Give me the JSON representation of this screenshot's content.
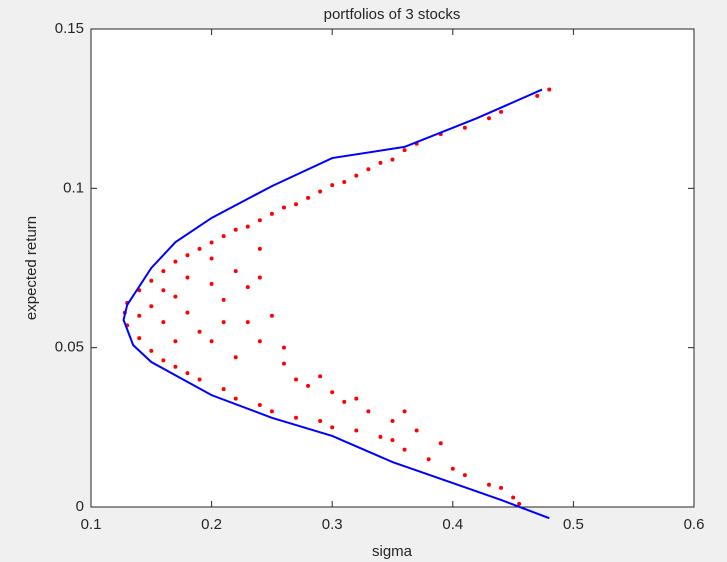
{
  "chart_data": {
    "type": "scatter",
    "title": "portfolios of 3 stocks",
    "xlabel": "sigma",
    "ylabel": "expected return",
    "xlim": [
      0.1,
      0.6
    ],
    "ylim": [
      0,
      0.15
    ],
    "xticks": [
      0.1,
      0.2,
      0.3,
      0.4,
      0.5,
      0.6
    ],
    "yticks": [
      0,
      0.05,
      0.1,
      0.15
    ],
    "series": [
      {
        "type": "scatter",
        "color": "#ff0000",
        "x": [
          0.48,
          0.47,
          0.44,
          0.43,
          0.41,
          0.39,
          0.37,
          0.36,
          0.35,
          0.34,
          0.33,
          0.32,
          0.31,
          0.3,
          0.29,
          0.28,
          0.27,
          0.26,
          0.25,
          0.24,
          0.23,
          0.22,
          0.21,
          0.2,
          0.19,
          0.18,
          0.17,
          0.16,
          0.15,
          0.14,
          0.13,
          0.128,
          0.13,
          0.14,
          0.15,
          0.16,
          0.17,
          0.18,
          0.19,
          0.21,
          0.22,
          0.24,
          0.25,
          0.27,
          0.29,
          0.3,
          0.32,
          0.34,
          0.35,
          0.36,
          0.38,
          0.4,
          0.41,
          0.43,
          0.44,
          0.45,
          0.455,
          0.14,
          0.15,
          0.16,
          0.17,
          0.18,
          0.19,
          0.2,
          0.21,
          0.22,
          0.23,
          0.24,
          0.25,
          0.22,
          0.24,
          0.26,
          0.27,
          0.28,
          0.3,
          0.31,
          0.33,
          0.35,
          0.37,
          0.39,
          0.2,
          0.17,
          0.16,
          0.18,
          0.23,
          0.21,
          0.26,
          0.29,
          0.32,
          0.2,
          0.24,
          0.36
        ],
        "y": [
          0.131,
          0.129,
          0.124,
          0.122,
          0.119,
          0.117,
          0.114,
          0.112,
          0.109,
          0.108,
          0.106,
          0.104,
          0.102,
          0.101,
          0.099,
          0.097,
          0.095,
          0.094,
          0.092,
          0.09,
          0.088,
          0.087,
          0.085,
          0.083,
          0.081,
          0.079,
          0.077,
          0.074,
          0.071,
          0.068,
          0.064,
          0.061,
          0.057,
          0.053,
          0.049,
          0.046,
          0.044,
          0.042,
          0.04,
          0.037,
          0.034,
          0.032,
          0.03,
          0.028,
          0.027,
          0.025,
          0.024,
          0.022,
          0.021,
          0.018,
          0.015,
          0.012,
          0.01,
          0.007,
          0.006,
          0.003,
          0.001,
          0.06,
          0.063,
          0.058,
          0.066,
          0.061,
          0.055,
          0.07,
          0.065,
          0.074,
          0.069,
          0.072,
          0.06,
          0.047,
          0.052,
          0.045,
          0.04,
          0.038,
          0.036,
          0.033,
          0.03,
          0.027,
          0.024,
          0.02,
          0.052,
          0.052,
          0.068,
          0.072,
          0.058,
          0.058,
          0.05,
          0.041,
          0.034,
          0.078,
          0.081,
          0.03
        ]
      },
      {
        "type": "line",
        "color": "#0000ff",
        "x": [
          0.474,
          0.42,
          0.36,
          0.3,
          0.25,
          0.2,
          0.17,
          0.15,
          0.13,
          0.127,
          0.135,
          0.15,
          0.2,
          0.25,
          0.3,
          0.35,
          0.4,
          0.44,
          0.48
        ],
        "y": [
          0.131,
          0.122,
          0.113,
          0.1095,
          0.1007,
          0.0907,
          0.0831,
          0.075,
          0.0634,
          0.0587,
          0.0508,
          0.0455,
          0.0351,
          0.028,
          0.0223,
          0.0141,
          0.0075,
          0.0022,
          -0.0035
        ]
      }
    ]
  }
}
